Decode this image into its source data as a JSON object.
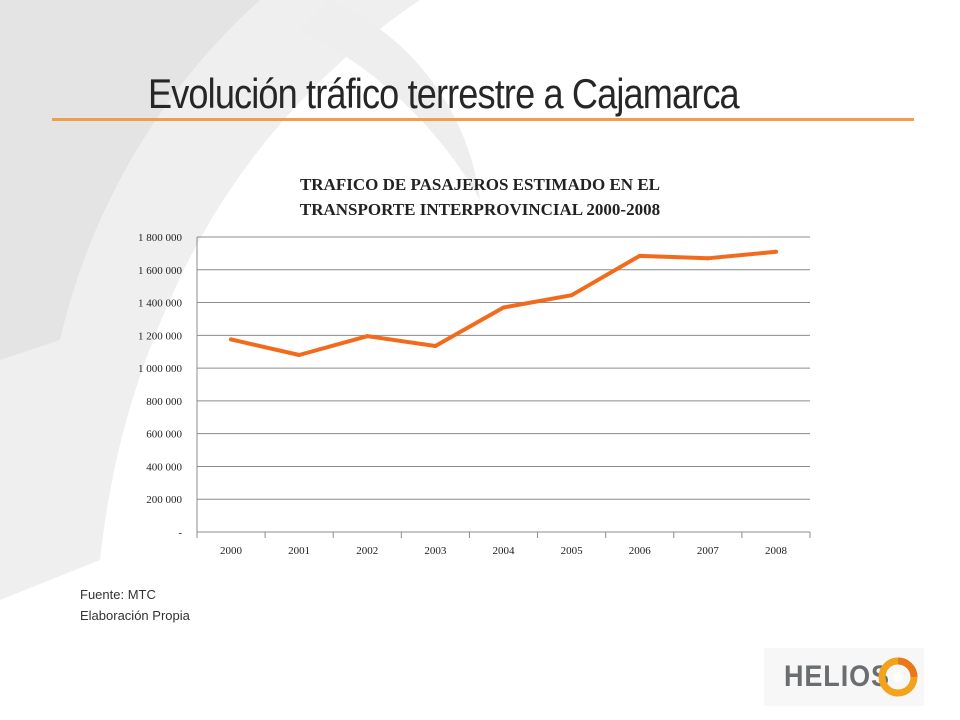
{
  "slide": {
    "title": "Evolución tráfico terrestre a Cajamarca",
    "accent_color": "#f39c4a",
    "source_lines": [
      "Fuente: MTC",
      "Elaboración Propia"
    ],
    "logo_text": "HELIOS"
  },
  "chart_data": {
    "type": "line",
    "title_lines": [
      "TRAFICO DE PASAJEROS ESTIMADO EN EL",
      "TRANSPORTE INTERPROVINCIAL 2000-2008"
    ],
    "categories": [
      "2000",
      "2001",
      "2002",
      "2003",
      "2004",
      "2005",
      "2006",
      "2007",
      "2008"
    ],
    "series": [
      {
        "values": [
          1175000,
          1080000,
          1195000,
          1135000,
          1370000,
          1445000,
          1685000,
          1670000,
          1710000
        ],
        "color": "#f26b1d"
      }
    ],
    "ylim": [
      0,
      1800000
    ],
    "ytick_values": [
      0,
      200000,
      400000,
      600000,
      800000,
      1000000,
      1200000,
      1400000,
      1600000,
      1800000
    ],
    "ytick_labels": [
      "-",
      "200 000",
      "400 000",
      "600 000",
      "800 000",
      "1 000 000",
      "1 200 000",
      "1 400 000",
      "1 600 000",
      "1 800 000"
    ],
    "grid": true,
    "legend": "none",
    "xlabel": "",
    "ylabel": ""
  }
}
